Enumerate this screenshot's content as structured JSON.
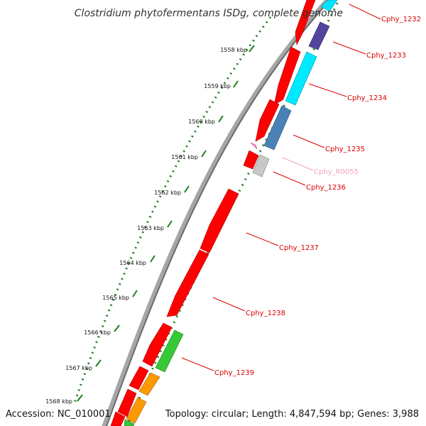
{
  "title": "Clostridium phytofermentans ISDg, complete genome",
  "accession": "Accession: NC_010001",
  "summary": "Topology: circular; Length: 4,847,594 bp; Genes: 3,988",
  "colors": {
    "backbone_outer": "#999999",
    "backbone_inner": "#6e6e6e",
    "tick_green": "#1e7d1e",
    "label_red": "#dd0000",
    "label_pink": "#f0a0c0"
  },
  "kbp_markers": [
    {
      "label": "1558 kbp"
    },
    {
      "label": "1559 kbp"
    },
    {
      "label": "1560 kbp"
    },
    {
      "label": "1561 kbp"
    },
    {
      "label": "1562 kbp"
    },
    {
      "label": "1563 kbp"
    },
    {
      "label": "1564 kbp"
    },
    {
      "label": "1565 kbp"
    },
    {
      "label": "1566 kbp"
    },
    {
      "label": "1567 kbp"
    },
    {
      "label": "1568 kbp"
    }
  ],
  "gene_labels": [
    {
      "text": "Cphy_1232",
      "color": "#dd0000"
    },
    {
      "text": "Cphy_1233",
      "color": "#dd0000"
    },
    {
      "text": "Cphy_1234",
      "color": "#dd0000"
    },
    {
      "text": "Cphy_1235",
      "color": "#dd0000"
    },
    {
      "text": "Cphy_R0055",
      "color": "#f0a0c0"
    },
    {
      "text": "Cphy_1236",
      "color": "#dd0000"
    },
    {
      "text": "Cphy_1237",
      "color": "#dd0000"
    },
    {
      "text": "Cphy_1238",
      "color": "#dd0000"
    },
    {
      "text": "Cphy_1239",
      "color": "#dd0000"
    }
  ]
}
